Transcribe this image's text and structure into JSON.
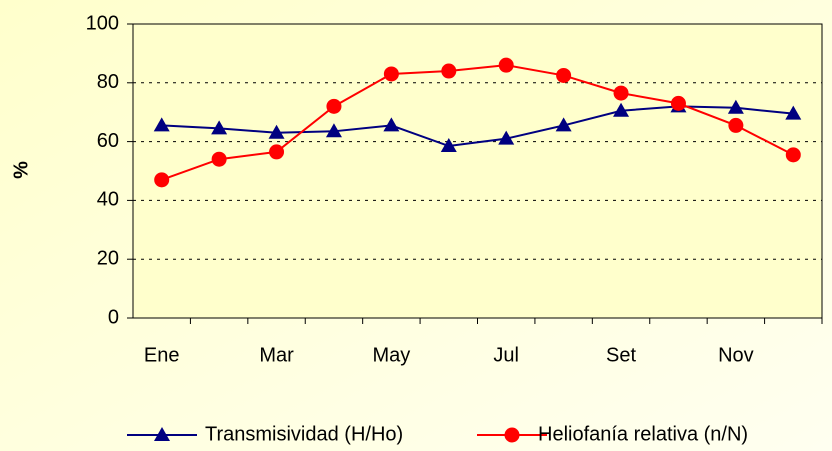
{
  "chart_data": {
    "type": "line",
    "y_label": "%",
    "categories": [
      "Ene",
      null,
      "Mar",
      null,
      "May",
      null,
      "Jul",
      null,
      "Set",
      null,
      "Nov",
      null
    ],
    "series": [
      {
        "name": "Transmisividad (H/Ho)",
        "color": "#000080",
        "marker": "triangle",
        "values": [
          65.5,
          64.5,
          63,
          63.5,
          65.5,
          58.5,
          61,
          65.5,
          70.5,
          72,
          71.5,
          69.5
        ]
      },
      {
        "name": "Heliofanía relativa (n/N)",
        "color": "#ff0000",
        "marker": "circle",
        "values": [
          47,
          54,
          56.5,
          72,
          83,
          84,
          86,
          82.5,
          76.5,
          73,
          65.5,
          55.5
        ]
      }
    ],
    "ylim": [
      0,
      100
    ],
    "yticks": [
      0,
      20,
      40,
      60,
      80,
      100
    ],
    "grid": true,
    "legend": "bottom"
  }
}
